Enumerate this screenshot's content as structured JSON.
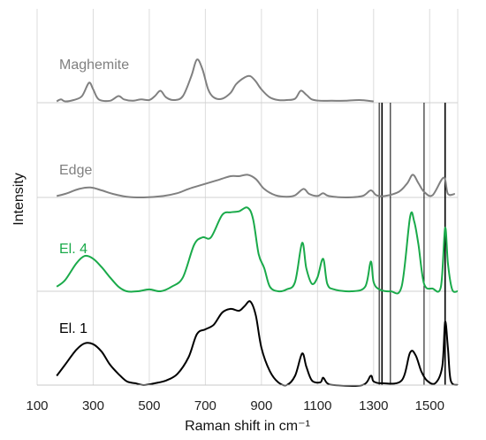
{
  "chart_data": {
    "type": "line",
    "title": "",
    "xlabel": "Raman shift in cm⁻¹",
    "ylabel": "Intensity",
    "xlim": [
      100,
      1600
    ],
    "x_ticks": [
      100,
      300,
      500,
      700,
      900,
      1100,
      1300,
      1500
    ],
    "grid": true,
    "vertical_lines": [
      1320,
      1330,
      1360,
      1480,
      1555
    ],
    "series": [
      {
        "name": "Maghemite",
        "color": "#808080",
        "points": [
          [
            170,
            0.02
          ],
          [
            185,
            0.05
          ],
          [
            200,
            0.02
          ],
          [
            230,
            0.04
          ],
          [
            260,
            0.1
          ],
          [
            285,
            0.3
          ],
          [
            300,
            0.2
          ],
          [
            320,
            0.05
          ],
          [
            360,
            0.03
          ],
          [
            390,
            0.1
          ],
          [
            410,
            0.05
          ],
          [
            440,
            0.03
          ],
          [
            470,
            0.05
          ],
          [
            500,
            0.04
          ],
          [
            520,
            0.1
          ],
          [
            540,
            0.18
          ],
          [
            560,
            0.08
          ],
          [
            590,
            0.04
          ],
          [
            620,
            0.1
          ],
          [
            650,
            0.4
          ],
          [
            670,
            0.65
          ],
          [
            690,
            0.5
          ],
          [
            710,
            0.2
          ],
          [
            730,
            0.08
          ],
          [
            760,
            0.06
          ],
          [
            790,
            0.15
          ],
          [
            810,
            0.28
          ],
          [
            840,
            0.38
          ],
          [
            860,
            0.4
          ],
          [
            880,
            0.32
          ],
          [
            900,
            0.2
          ],
          [
            930,
            0.08
          ],
          [
            960,
            0.04
          ],
          [
            990,
            0.04
          ],
          [
            1020,
            0.06
          ],
          [
            1040,
            0.18
          ],
          [
            1060,
            0.12
          ],
          [
            1080,
            0.05
          ],
          [
            1110,
            0.03
          ],
          [
            1150,
            0.03
          ],
          [
            1200,
            0.03
          ],
          [
            1250,
            0.04
          ],
          [
            1300,
            0.02
          ]
        ]
      },
      {
        "name": "Edge",
        "color": "#808080",
        "points": [
          [
            170,
            0.02
          ],
          [
            200,
            0.05
          ],
          [
            250,
            0.12
          ],
          [
            290,
            0.14
          ],
          [
            330,
            0.1
          ],
          [
            370,
            0.05
          ],
          [
            420,
            0.01
          ],
          [
            480,
            0.0
          ],
          [
            550,
            0.02
          ],
          [
            600,
            0.06
          ],
          [
            640,
            0.12
          ],
          [
            690,
            0.18
          ],
          [
            740,
            0.24
          ],
          [
            790,
            0.3
          ],
          [
            820,
            0.3
          ],
          [
            850,
            0.32
          ],
          [
            880,
            0.26
          ],
          [
            910,
            0.12
          ],
          [
            950,
            0.03
          ],
          [
            990,
            0.01
          ],
          [
            1020,
            0.03
          ],
          [
            1050,
            0.12
          ],
          [
            1070,
            0.05
          ],
          [
            1100,
            0.02
          ],
          [
            1120,
            0.06
          ],
          [
            1140,
            0.02
          ],
          [
            1200,
            0.0
          ],
          [
            1260,
            0.02
          ],
          [
            1290,
            0.1
          ],
          [
            1310,
            0.03
          ],
          [
            1340,
            0.02
          ],
          [
            1390,
            0.08
          ],
          [
            1420,
            0.2
          ],
          [
            1440,
            0.32
          ],
          [
            1460,
            0.2
          ],
          [
            1480,
            0.08
          ],
          [
            1510,
            0.03
          ],
          [
            1550,
            0.28
          ],
          [
            1565,
            0.05
          ],
          [
            1590,
            0.05
          ]
        ]
      },
      {
        "name": "El. 4",
        "color": "#1aaa4a",
        "points": [
          [
            170,
            0.05
          ],
          [
            200,
            0.12
          ],
          [
            240,
            0.3
          ],
          [
            270,
            0.38
          ],
          [
            300,
            0.35
          ],
          [
            330,
            0.26
          ],
          [
            360,
            0.15
          ],
          [
            390,
            0.05
          ],
          [
            420,
            0.0
          ],
          [
            460,
            0.0
          ],
          [
            500,
            0.02
          ],
          [
            540,
            0.0
          ],
          [
            580,
            0.05
          ],
          [
            620,
            0.15
          ],
          [
            660,
            0.5
          ],
          [
            690,
            0.58
          ],
          [
            720,
            0.58
          ],
          [
            760,
            0.82
          ],
          [
            790,
            0.85
          ],
          [
            820,
            0.86
          ],
          [
            850,
            0.9
          ],
          [
            870,
            0.78
          ],
          [
            890,
            0.4
          ],
          [
            910,
            0.25
          ],
          [
            930,
            0.05
          ],
          [
            960,
            0.0
          ],
          [
            990,
            0.02
          ],
          [
            1020,
            0.1
          ],
          [
            1045,
            0.52
          ],
          [
            1060,
            0.25
          ],
          [
            1080,
            0.08
          ],
          [
            1100,
            0.15
          ],
          [
            1120,
            0.35
          ],
          [
            1135,
            0.08
          ],
          [
            1160,
            0.02
          ],
          [
            1220,
            0.0
          ],
          [
            1270,
            0.05
          ],
          [
            1290,
            0.32
          ],
          [
            1300,
            0.1
          ],
          [
            1320,
            0.02
          ],
          [
            1360,
            0.0
          ],
          [
            1400,
            0.05
          ],
          [
            1430,
            0.8
          ],
          [
            1445,
            0.75
          ],
          [
            1460,
            0.5
          ],
          [
            1480,
            0.08
          ],
          [
            1510,
            0.03
          ],
          [
            1540,
            0.05
          ],
          [
            1555,
            0.68
          ],
          [
            1565,
            0.3
          ],
          [
            1580,
            0.02
          ],
          [
            1600,
            0.0
          ]
        ]
      },
      {
        "name": "El. 1",
        "color": "#000000",
        "points": [
          [
            170,
            0.1
          ],
          [
            200,
            0.22
          ],
          [
            240,
            0.38
          ],
          [
            270,
            0.45
          ],
          [
            300,
            0.44
          ],
          [
            330,
            0.36
          ],
          [
            360,
            0.22
          ],
          [
            390,
            0.12
          ],
          [
            420,
            0.04
          ],
          [
            450,
            0.02
          ],
          [
            480,
            0.0
          ],
          [
            520,
            0.02
          ],
          [
            560,
            0.05
          ],
          [
            600,
            0.12
          ],
          [
            640,
            0.3
          ],
          [
            670,
            0.55
          ],
          [
            700,
            0.6
          ],
          [
            730,
            0.65
          ],
          [
            760,
            0.78
          ],
          [
            790,
            0.82
          ],
          [
            820,
            0.8
          ],
          [
            840,
            0.85
          ],
          [
            860,
            0.9
          ],
          [
            880,
            0.75
          ],
          [
            900,
            0.4
          ],
          [
            930,
            0.15
          ],
          [
            960,
            0.03
          ],
          [
            990,
            0.0
          ],
          [
            1020,
            0.1
          ],
          [
            1045,
            0.34
          ],
          [
            1060,
            0.2
          ],
          [
            1080,
            0.05
          ],
          [
            1110,
            0.03
          ],
          [
            1120,
            0.08
          ],
          [
            1135,
            0.02
          ],
          [
            1160,
            0.0
          ],
          [
            1260,
            0.0
          ],
          [
            1290,
            0.1
          ],
          [
            1300,
            0.04
          ],
          [
            1330,
            0.02
          ],
          [
            1400,
            0.05
          ],
          [
            1430,
            0.35
          ],
          [
            1450,
            0.32
          ],
          [
            1470,
            0.15
          ],
          [
            1490,
            0.05
          ],
          [
            1520,
            0.02
          ],
          [
            1545,
            0.2
          ],
          [
            1555,
            0.68
          ],
          [
            1565,
            0.4
          ],
          [
            1575,
            0.05
          ],
          [
            1600,
            0.0
          ]
        ]
      }
    ]
  }
}
